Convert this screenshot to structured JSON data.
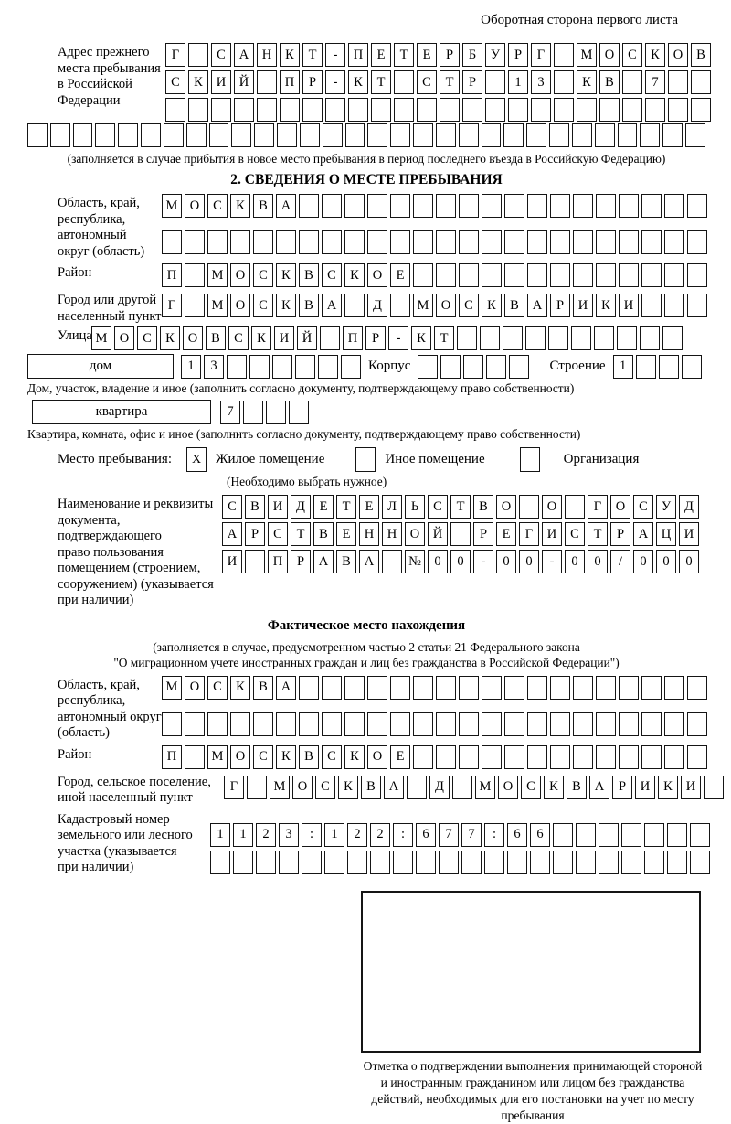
{
  "page": {
    "header_note": "Оборотная сторона первого листа",
    "section2_title": "2. СВЕДЕНИЯ О МЕСТЕ ПРЕБЫВАНИЯ",
    "actual_location_title": "Фактическое место нахождения",
    "actual_location_note_lines": [
      "(заполняется в случае, предусмотренном частью 2 статьи 21 Федерального закона",
      "\"О миграционном учете иностранных граждан и лиц без гражданства в Российской Федерации\")"
    ]
  },
  "prev_address": {
    "label_lines": [
      "Адрес прежнего",
      "места пребывания",
      "в Российской",
      "Федерации"
    ],
    "rows": [
      {
        "text": "Г САНКТ-ПЕТЕРБУРГ МОСКОВ",
        "len": 24
      },
      {
        "text": "СКИЙ ПР-КТ СТР 13 КВ 7",
        "len": 24
      },
      {
        "text": "",
        "len": 24
      },
      {
        "text": "",
        "len": 30
      }
    ],
    "note": "(заполняется в случае прибытия в новое место пребывания в период последнего въезда в Российскую Федерацию)"
  },
  "region1": {
    "label_lines": [
      "Область, край,",
      "республика,",
      "автономный",
      "округ (область)"
    ],
    "rows": [
      {
        "text": "МОСКВА",
        "len": 24
      },
      {
        "text": "",
        "len": 24
      }
    ]
  },
  "district1": {
    "label": "Район",
    "row": {
      "text": "П МОСКВСКОЕ",
      "len": 24
    }
  },
  "city1": {
    "label_lines": [
      "Город или другой",
      "населенный пункт"
    ],
    "row": {
      "text": "Г МОСКВА Д МОСКВАРИКИ",
      "len": 24
    }
  },
  "street": {
    "label": "Улица",
    "row": {
      "text": "МОСКОВСКИЙ ПР-КТ",
      "len": 26
    }
  },
  "house_row": {
    "dom_label": "дом",
    "dom_cells": {
      "text": "13",
      "len": 8
    },
    "korpus_label": "Корпус",
    "korpus_cells": {
      "text": "",
      "len": 5
    },
    "stroenie_label": "Строение",
    "stroenie_cells": {
      "text": "1",
      "len": 4
    },
    "note": "Дом, участок, владение и иное (заполнить согласно документу, подтверждающему право собственности)"
  },
  "apartment_row": {
    "box_label": "квартира",
    "cells": {
      "text": "7",
      "len": 4
    },
    "note": "Квартира, комната, офис и иное (заполнить согласно документу, подтверждающему право собственности)"
  },
  "place_type": {
    "label": "Место пребывания:",
    "options": [
      {
        "label": "Жилое помещение",
        "mark": "X"
      },
      {
        "label": "Иное помещение",
        "mark": ""
      },
      {
        "label": "Организация",
        "mark": ""
      }
    ],
    "note": "(Необходимо выбрать нужное)"
  },
  "document": {
    "label_lines": [
      "Наименование и реквизиты",
      "документа, подтверждающего",
      "право пользования",
      "помещением (строением,",
      "сооружением) (указывается",
      "при наличии)"
    ],
    "rows": [
      {
        "text": "СВИДЕТЕЛЬСТВО О ГОСУД",
        "len": 21
      },
      {
        "text": "АРСТВЕННОЙ РЕГИСТРАЦИ",
        "len": 21
      },
      {
        "text": "И ПРАВА №00-00-00/000",
        "len": 21
      }
    ]
  },
  "region2": {
    "label_lines": [
      "Область, край,",
      "республика,",
      "автономный округ",
      "(область)"
    ],
    "rows": [
      {
        "text": "МОСКВА",
        "len": 24
      },
      {
        "text": "",
        "len": 24
      }
    ]
  },
  "district2": {
    "label": "Район",
    "row": {
      "text": "П МОСКВСКОЕ",
      "len": 24
    }
  },
  "city2": {
    "label_lines": [
      "Город, сельское поселение,",
      "иной населенный пункт"
    ],
    "row": {
      "text": "Г МОСКВА Д МОСКВАРИКИ",
      "len": 22
    }
  },
  "cadastral": {
    "label_lines": [
      "Кадастровый номер",
      "земельного или лесного",
      "участка (указывается",
      "при наличии)"
    ],
    "rows": [
      {
        "text": "1123:122:677:66",
        "len": 22
      },
      {
        "text": "",
        "len": 22
      }
    ]
  },
  "stamp": {
    "caption": "Отметка о подтверждении выполнения принимающей стороной и иностранным гражданином или лицом без гражданства действий, необходимых для его постановки на учет по месту пребывания"
  }
}
